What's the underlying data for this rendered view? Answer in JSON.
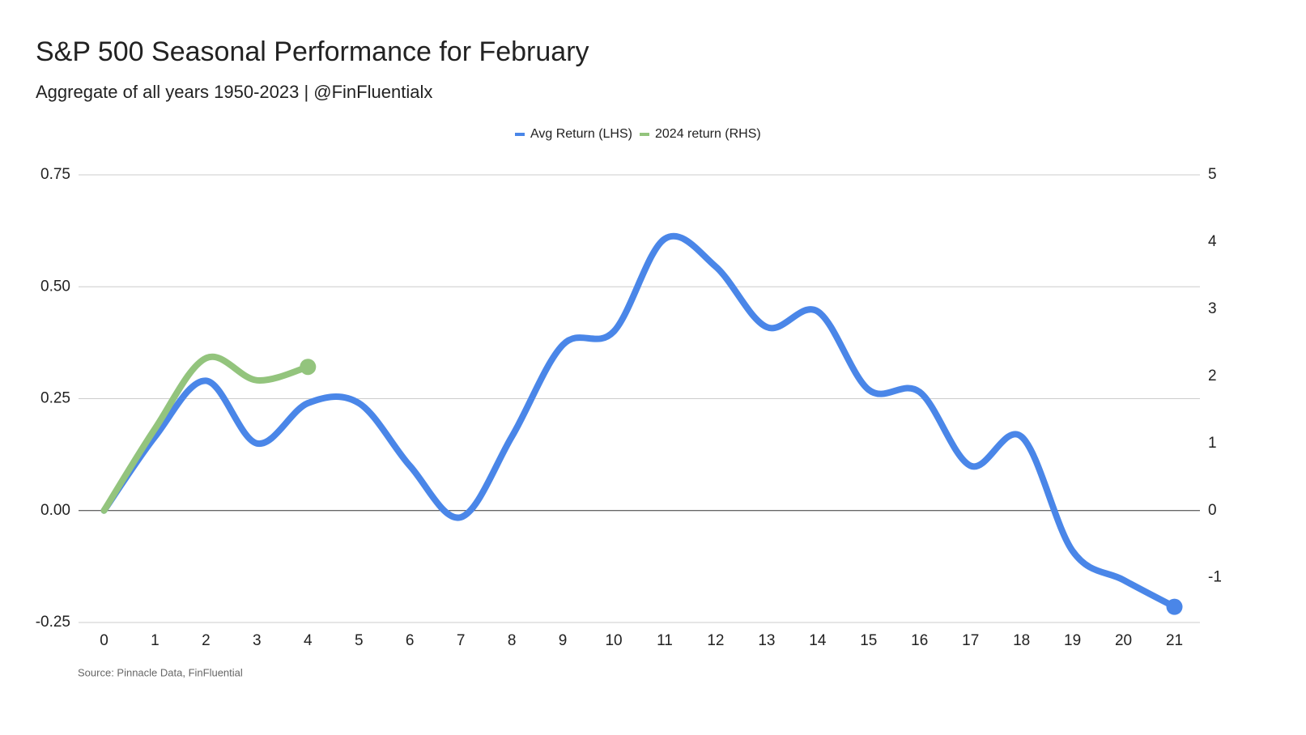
{
  "chart_data": {
    "type": "line",
    "title": "S&P 500 Seasonal Performance for February",
    "subtitle": "Aggregate of all years 1950-2023 | @FinFluentialx",
    "source": "Source: Pinnacle Data, FinFluential",
    "x": [
      0,
      1,
      2,
      3,
      4,
      5,
      6,
      7,
      8,
      9,
      10,
      11,
      12,
      13,
      14,
      15,
      16,
      17,
      18,
      19,
      20,
      21
    ],
    "xlim": [
      -0.5,
      21.5
    ],
    "series": [
      {
        "name": "Avg Return (LHS)",
        "color": "#4a86e8",
        "axis": "y",
        "values": [
          0,
          0.165,
          0.29,
          0.15,
          0.24,
          0.24,
          0.1,
          -0.015,
          0.165,
          0.37,
          0.4,
          0.607,
          0.545,
          0.41,
          0.445,
          0.27,
          0.265,
          0.1,
          0.165,
          -0.09,
          -0.155,
          -0.215
        ]
      },
      {
        "name": "2024 return (RHS)",
        "color": "#93c47d",
        "axis": "y2",
        "values": [
          0,
          1.22,
          2.27,
          1.94,
          2.14,
          null,
          null,
          null,
          null,
          null,
          null,
          null,
          null,
          null,
          null,
          null,
          null,
          null,
          null,
          null,
          null,
          null
        ]
      }
    ],
    "ylim": [
      -0.25,
      0.75
    ],
    "yticks": [
      {
        "value": -0.25,
        "label": "-0.25"
      },
      {
        "value": 0,
        "label": "0.00"
      },
      {
        "value": 0.25,
        "label": "0.25"
      },
      {
        "value": 0.5,
        "label": "0.50"
      },
      {
        "value": 0.75,
        "label": "0.75"
      }
    ],
    "y2lim": [
      -1.6667,
      5
    ],
    "y2ticks": [
      -1,
      0,
      1,
      2,
      3,
      4,
      5
    ],
    "grid": true,
    "legend": "top"
  }
}
